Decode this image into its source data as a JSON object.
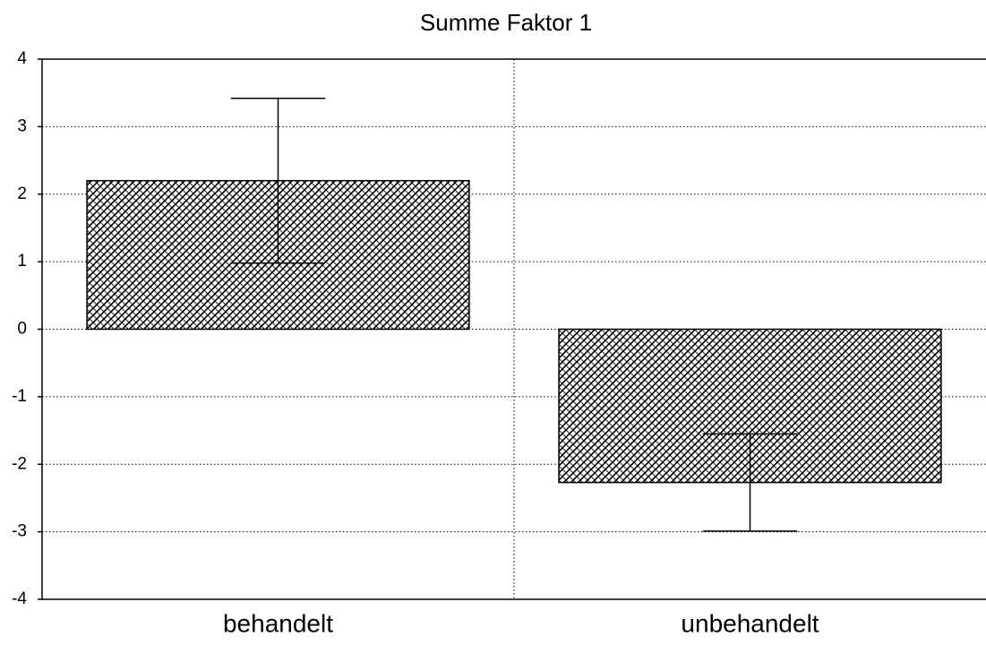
{
  "chart_data": {
    "type": "bar",
    "title": "Summe Faktor 1",
    "categories": [
      "behandelt",
      "unbehandelt"
    ],
    "values": [
      2.2,
      -2.27
    ],
    "errors": [
      1.22,
      0.72
    ],
    "color": "#000000",
    "ylim": [
      -4,
      4
    ],
    "yticks": [
      -4,
      -3,
      -2,
      -1,
      0,
      1,
      2,
      3,
      4
    ],
    "grid": true
  }
}
